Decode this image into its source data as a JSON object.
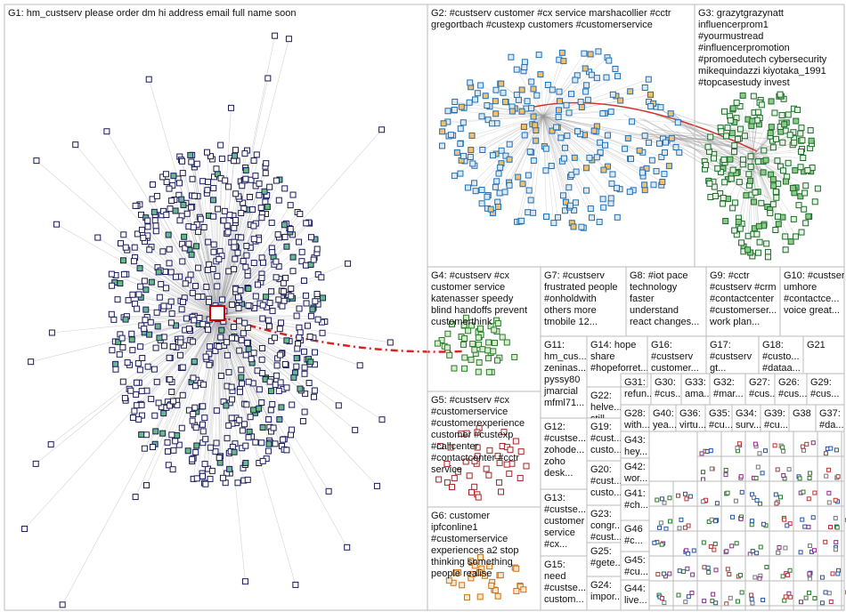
{
  "groups": [
    {
      "lines": [
        "G1: hm_custserv please order dm hi address email full name soon"
      ]
    },
    {
      "lines": [
        "G2: #custserv customer #cx service marshacollier #cctr",
        "gregortbach #custexp customers #customerservice"
      ]
    },
    {
      "lines": [
        "G3: grazytgrazynatt",
        "influencerprom1",
        "#yourmustread",
        "#influencerpromotion",
        "#promoedutech cybersecurity",
        "mikequindazzi kiyotaka_1991",
        "#topcasestudy invest"
      ]
    },
    {
      "lines": [
        "G4: #custserv #cx",
        "customer service",
        "katenasser speedy",
        "blind handoffs prevent",
        "customerthink"
      ]
    },
    {
      "lines": [
        "G7: #custserv",
        "frustrated people",
        "#onholdwith",
        "others more",
        "tmobile 12..."
      ]
    },
    {
      "lines": [
        "G8: #iot pace",
        "technology",
        "faster",
        "understand",
        "react changes..."
      ]
    },
    {
      "lines": [
        "G9: #cctr",
        "#custserv #crm",
        "#contactcenter",
        "#customerser...",
        "work plan..."
      ]
    },
    {
      "lines": [
        "G10: #custserv",
        "umhore",
        "#contactce...",
        "voice great..."
      ]
    },
    {
      "lines": [
        "G5: #custserv #cx",
        "#customerservice",
        "#customerexperience",
        "customer #custexp",
        "#callcenter",
        "#contactcenter #cctr",
        "service"
      ]
    },
    {
      "lines": [
        "G6: customer",
        "ipfconline1",
        "#customerservice",
        "experiences a2 stop",
        "thinking something",
        "people realise"
      ]
    },
    {
      "lines": [
        "G11:",
        "hm_cus...",
        "zeninas...",
        "pyssy80",
        "jmarcial",
        "mfml71..."
      ]
    },
    {
      "lines": [
        "G14: hope",
        "share",
        "#hopeforret..."
      ]
    },
    {
      "lines": [
        "G16:",
        "#custserv",
        "customer..."
      ]
    },
    {
      "lines": [
        "G17:",
        "#custserv",
        "gt..."
      ]
    },
    {
      "lines": [
        "G18:",
        "#custo...",
        "#dataa..."
      ]
    },
    {
      "lines": [
        "G21"
      ]
    },
    {
      "lines": [
        "G22:",
        "helve...",
        "still..."
      ]
    },
    {
      "lines": [
        "G31:",
        "refun..."
      ]
    },
    {
      "lines": [
        "G30:",
        "#cus..."
      ]
    },
    {
      "lines": [
        "G33:",
        "ama..."
      ]
    },
    {
      "lines": [
        "G32:",
        "#mar..."
      ]
    },
    {
      "lines": [
        "G27:",
        "#cus..."
      ]
    },
    {
      "lines": [
        "G26:",
        "#cus..."
      ]
    },
    {
      "lines": [
        "G29:",
        "#cus..."
      ]
    },
    {
      "lines": [
        "G12:",
        "#custse...",
        "zohode...",
        "zoho",
        "desk..."
      ]
    },
    {
      "lines": [
        "G19:",
        "#cust...",
        "custo..."
      ]
    },
    {
      "lines": [
        "G28:",
        "with..."
      ]
    },
    {
      "lines": [
        "G40:",
        "yea..."
      ]
    },
    {
      "lines": [
        "G36:",
        "virtu..."
      ]
    },
    {
      "lines": [
        "G35:",
        "#cu..."
      ]
    },
    {
      "lines": [
        "G34:",
        "surv..."
      ]
    },
    {
      "lines": [
        "G39:",
        "#cu..."
      ]
    },
    {
      "lines": [
        "G38"
      ]
    },
    {
      "lines": [
        "G37:",
        "#da..."
      ]
    },
    {
      "lines": [
        "G43:",
        "hey..."
      ]
    },
    {
      "lines": [
        "G20:",
        "#cust...",
        "custo..."
      ]
    },
    {
      "lines": [
        "G42:",
        "wor..."
      ]
    },
    {
      "lines": [
        "G13:",
        "#custse...",
        "customer",
        "service",
        "#cx..."
      ]
    },
    {
      "lines": [
        "G23:",
        "congr...",
        "#cust..."
      ]
    },
    {
      "lines": [
        "G41:",
        "#ch..."
      ]
    },
    {
      "lines": [
        "G46",
        "#c..."
      ]
    },
    {
      "lines": [
        "G25:",
        "#gete..."
      ]
    },
    {
      "lines": [
        "G15:",
        "need",
        "#custse...",
        "custom..."
      ]
    },
    {
      "lines": [
        "G45:",
        "#cu..."
      ]
    },
    {
      "lines": [
        "G24:",
        "impor..."
      ]
    },
    {
      "lines": [
        "G44:",
        "live..."
      ]
    }
  ]
}
